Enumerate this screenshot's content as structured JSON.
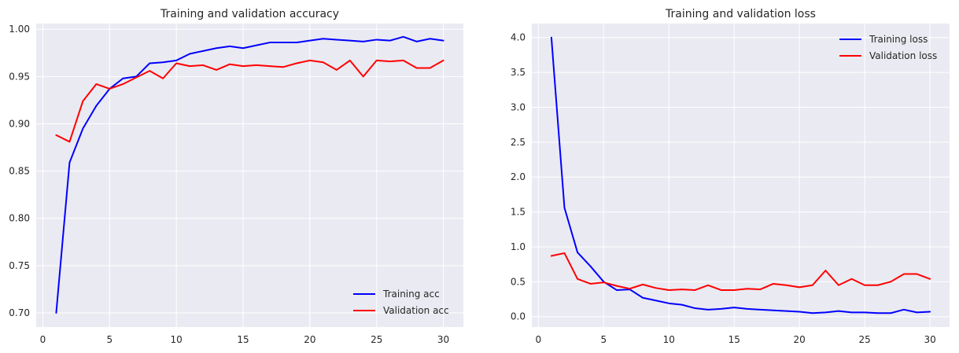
{
  "chart_data": [
    {
      "type": "line",
      "title": "Training and validation accuracy",
      "xlabel": "",
      "ylabel": "",
      "xlim": [
        -0.5,
        31.5
      ],
      "ylim": [
        0.685,
        1.006
      ],
      "xticks": [
        0,
        5,
        10,
        15,
        20,
        25,
        30
      ],
      "yticks": [
        0.7,
        0.75,
        0.8,
        0.85,
        0.9,
        0.95,
        1.0
      ],
      "ytick_decimals": 2,
      "grid": true,
      "legend_position": "bottom-right",
      "x": [
        1,
        2,
        3,
        4,
        5,
        6,
        7,
        8,
        9,
        10,
        11,
        12,
        13,
        14,
        15,
        16,
        17,
        18,
        19,
        20,
        21,
        22,
        23,
        24,
        25,
        26,
        27,
        28,
        29,
        30
      ],
      "series": [
        {
          "name": "Training acc",
          "color": "#0000ff",
          "values": [
            0.7,
            0.859,
            0.895,
            0.919,
            0.937,
            0.948,
            0.95,
            0.964,
            0.965,
            0.967,
            0.974,
            0.977,
            0.98,
            0.982,
            0.98,
            0.983,
            0.986,
            0.986,
            0.986,
            0.988,
            0.99,
            0.989,
            0.988,
            0.987,
            0.989,
            0.988,
            0.992,
            0.987,
            0.99,
            0.988
          ]
        },
        {
          "name": "Validation acc",
          "color": "#ff0000",
          "values": [
            0.888,
            0.881,
            0.924,
            0.942,
            0.937,
            0.942,
            0.949,
            0.956,
            0.948,
            0.964,
            0.961,
            0.962,
            0.957,
            0.963,
            0.961,
            0.962,
            0.961,
            0.96,
            0.964,
            0.967,
            0.965,
            0.957,
            0.967,
            0.95,
            0.967,
            0.966,
            0.967,
            0.959,
            0.959,
            0.967
          ]
        }
      ]
    },
    {
      "type": "line",
      "title": "Training and validation loss",
      "xlabel": "",
      "ylabel": "",
      "xlim": [
        -0.5,
        31.5
      ],
      "ylim": [
        -0.15,
        4.2
      ],
      "xticks": [
        0,
        5,
        10,
        15,
        20,
        25,
        30
      ],
      "yticks": [
        0.0,
        0.5,
        1.0,
        1.5,
        2.0,
        2.5,
        3.0,
        3.5,
        4.0
      ],
      "ytick_decimals": 1,
      "grid": true,
      "legend_position": "top-right",
      "x": [
        1,
        2,
        3,
        4,
        5,
        6,
        7,
        8,
        9,
        10,
        11,
        12,
        13,
        14,
        15,
        16,
        17,
        18,
        19,
        20,
        21,
        22,
        23,
        24,
        25,
        26,
        27,
        28,
        29,
        30
      ],
      "series": [
        {
          "name": "Training loss",
          "color": "#0000ff",
          "values": [
            4.0,
            1.56,
            0.92,
            0.72,
            0.5,
            0.38,
            0.39,
            0.27,
            0.23,
            0.19,
            0.17,
            0.12,
            0.1,
            0.11,
            0.13,
            0.11,
            0.1,
            0.09,
            0.08,
            0.07,
            0.05,
            0.06,
            0.08,
            0.06,
            0.06,
            0.05,
            0.05,
            0.1,
            0.06,
            0.07
          ]
        },
        {
          "name": "Validation loss",
          "color": "#ff0000",
          "values": [
            0.87,
            0.91,
            0.54,
            0.47,
            0.49,
            0.44,
            0.4,
            0.46,
            0.41,
            0.38,
            0.39,
            0.38,
            0.45,
            0.38,
            0.38,
            0.4,
            0.39,
            0.47,
            0.45,
            0.42,
            0.45,
            0.66,
            0.45,
            0.54,
            0.45,
            0.45,
            0.5,
            0.61,
            0.61,
            0.54
          ]
        }
      ]
    }
  ]
}
